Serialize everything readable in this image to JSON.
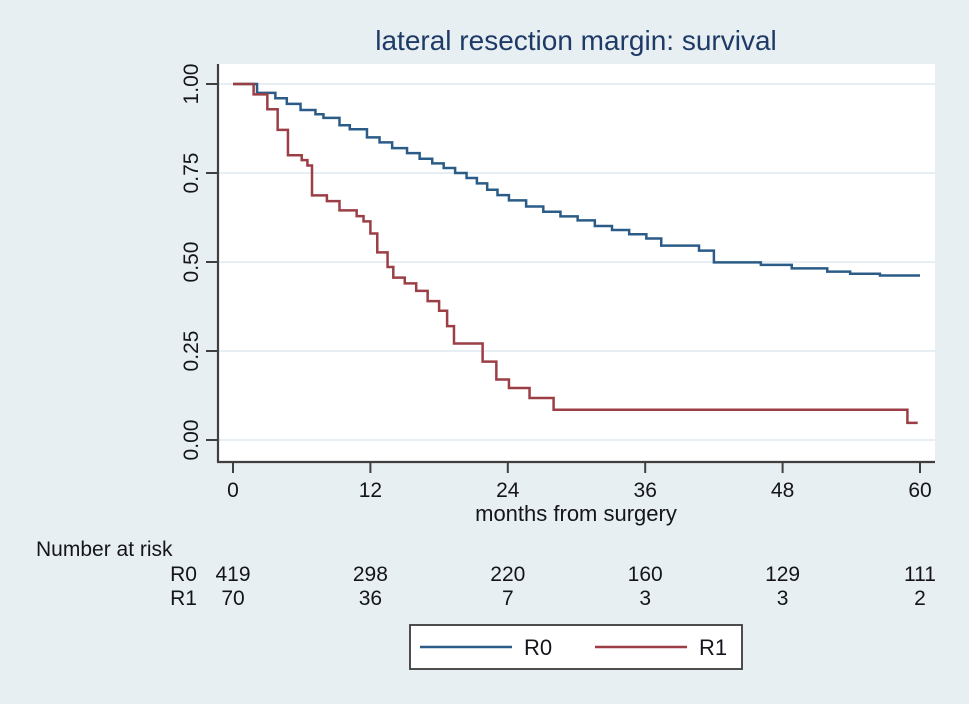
{
  "figure": {
    "background_color": "#e8eff2",
    "plot_background_color": "#ffffff"
  },
  "chart_data": {
    "type": "line",
    "subtype": "kaplan-meier-step-survival",
    "title": "lateral resection margin: survival",
    "xlabel": "months from surgery",
    "ylabel": "",
    "xlim": [
      0,
      60
    ],
    "ylim": [
      0.0,
      1.0
    ],
    "grid": "horizontal",
    "legend_position": "bottom-center",
    "x_ticks": [
      {
        "value": 0,
        "label": "0"
      },
      {
        "value": 12,
        "label": "12"
      },
      {
        "value": 24,
        "label": "24"
      },
      {
        "value": 36,
        "label": "36"
      },
      {
        "value": 48,
        "label": "48"
      },
      {
        "value": 60,
        "label": "60"
      }
    ],
    "y_ticks": [
      {
        "value": 0.0,
        "label": "0.00"
      },
      {
        "value": 0.25,
        "label": "0.25"
      },
      {
        "value": 0.5,
        "label": "0.50"
      },
      {
        "value": 0.75,
        "label": "0.75"
      },
      {
        "value": 1.0,
        "label": "1.00"
      }
    ],
    "series": [
      {
        "name": "R0",
        "color": "#2b5c87",
        "points": [
          [
            0,
            1.0
          ],
          [
            2.1,
            0.975
          ],
          [
            3.7,
            0.96
          ],
          [
            4.7,
            0.944
          ],
          [
            5.9,
            0.927
          ],
          [
            7.2,
            0.915
          ],
          [
            7.9,
            0.905
          ],
          [
            9.3,
            0.884
          ],
          [
            10.2,
            0.873
          ],
          [
            11.7,
            0.85
          ],
          [
            12.8,
            0.836
          ],
          [
            13.9,
            0.82
          ],
          [
            15.2,
            0.806
          ],
          [
            16.3,
            0.79
          ],
          [
            17.4,
            0.777
          ],
          [
            18.4,
            0.764
          ],
          [
            19.4,
            0.75
          ],
          [
            20.4,
            0.736
          ],
          [
            21.3,
            0.721
          ],
          [
            22.2,
            0.703
          ],
          [
            23.1,
            0.688
          ],
          [
            24.1,
            0.673
          ],
          [
            25.6,
            0.656
          ],
          [
            27.1,
            0.641
          ],
          [
            28.6,
            0.628
          ],
          [
            30.1,
            0.617
          ],
          [
            31.6,
            0.601
          ],
          [
            33.1,
            0.59
          ],
          [
            34.6,
            0.578
          ],
          [
            36.1,
            0.566
          ],
          [
            37.4,
            0.546
          ],
          [
            40.7,
            0.532
          ],
          [
            42.0,
            0.499
          ],
          [
            46.1,
            0.492
          ],
          [
            48.8,
            0.482
          ],
          [
            51.9,
            0.473
          ],
          [
            53.9,
            0.467
          ],
          [
            56.5,
            0.462
          ],
          [
            60,
            0.462
          ]
        ]
      },
      {
        "name": "R1",
        "color": "#9c3e45",
        "points": [
          [
            0,
            1.0
          ],
          [
            1.8,
            0.971
          ],
          [
            3.0,
            0.929
          ],
          [
            3.9,
            0.871
          ],
          [
            4.8,
            0.8
          ],
          [
            6.0,
            0.786
          ],
          [
            6.5,
            0.771
          ],
          [
            6.9,
            0.687
          ],
          [
            8.2,
            0.671
          ],
          [
            9.3,
            0.645
          ],
          [
            10.8,
            0.629
          ],
          [
            11.4,
            0.614
          ],
          [
            12.0,
            0.58
          ],
          [
            12.6,
            0.527
          ],
          [
            13.5,
            0.486
          ],
          [
            14.0,
            0.456
          ],
          [
            15.0,
            0.44
          ],
          [
            16.0,
            0.419
          ],
          [
            17.0,
            0.39
          ],
          [
            18.0,
            0.363
          ],
          [
            18.7,
            0.32
          ],
          [
            19.3,
            0.271
          ],
          [
            21.8,
            0.22
          ],
          [
            23.0,
            0.17
          ],
          [
            24.1,
            0.146
          ],
          [
            25.9,
            0.118
          ],
          [
            28.0,
            0.085
          ],
          [
            58.9,
            0.048
          ],
          [
            59.8,
            0.048
          ]
        ]
      }
    ]
  },
  "risk_table": {
    "header": "Number at risk",
    "time_points": [
      0,
      12,
      24,
      36,
      48,
      60
    ],
    "rows": [
      {
        "label": "R0",
        "values": [
          "419",
          "298",
          "220",
          "160",
          "129",
          "111"
        ]
      },
      {
        "label": "R1",
        "values": [
          "70",
          "36",
          "7",
          "3",
          "3",
          "2"
        ]
      }
    ]
  },
  "legend": {
    "entries": [
      {
        "label": "R0",
        "color": "#2b5c87"
      },
      {
        "label": "R1",
        "color": "#9c3e45"
      }
    ]
  }
}
